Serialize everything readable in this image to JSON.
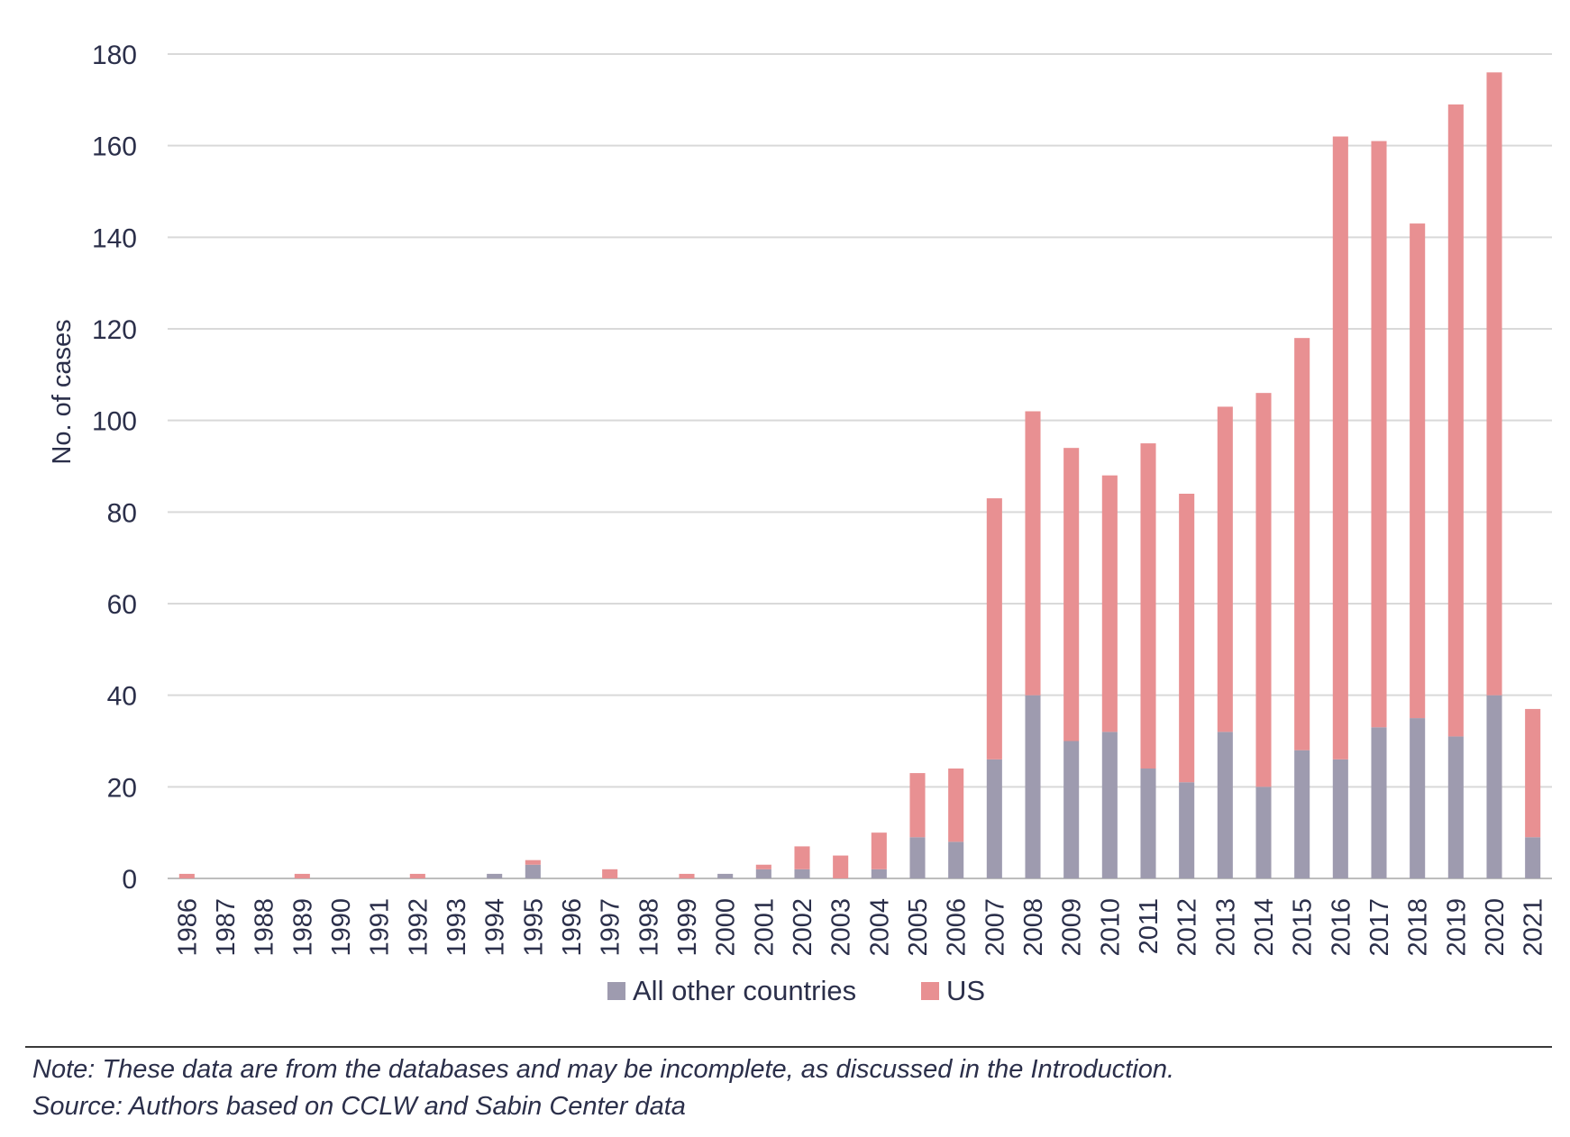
{
  "chart_data": {
    "type": "bar",
    "stacked": true,
    "categories": [
      "1986",
      "1987",
      "1988",
      "1989",
      "1990",
      "1991",
      "1992",
      "1993",
      "1994",
      "1995",
      "1996",
      "1997",
      "1998",
      "1999",
      "2000",
      "2001",
      "2002",
      "2003",
      "2004",
      "2005",
      "2006",
      "2007",
      "2008",
      "2009",
      "2010",
      "2011",
      "2012",
      "2013",
      "2014",
      "2015",
      "2016",
      "2017",
      "2018",
      "2019",
      "2020",
      "2021"
    ],
    "series": [
      {
        "name": "All other countries",
        "color": "#9e9baf",
        "values": [
          0,
          0,
          0,
          0,
          0,
          0,
          0,
          0,
          1,
          3,
          0,
          0,
          0,
          0,
          1,
          2,
          2,
          0,
          2,
          9,
          8,
          26,
          40,
          30,
          32,
          24,
          21,
          32,
          20,
          28,
          26,
          33,
          35,
          31,
          40,
          9
        ]
      },
      {
        "name": "US",
        "color": "#e89092",
        "values": [
          1,
          0,
          0,
          1,
          0,
          0,
          1,
          0,
          0,
          1,
          0,
          2,
          0,
          1,
          0,
          1,
          5,
          5,
          8,
          14,
          16,
          57,
          62,
          64,
          56,
          71,
          63,
          71,
          86,
          90,
          136,
          128,
          108,
          138,
          136,
          28
        ]
      }
    ],
    "title": "",
    "xlabel": "",
    "ylabel": "No. of cases",
    "ylim": [
      0,
      180
    ],
    "yticks": [
      0,
      20,
      40,
      60,
      80,
      100,
      120,
      140,
      160,
      180
    ],
    "grid": "horizontal",
    "legend": "bottom"
  },
  "notes": {
    "note": "Note: These data are from the databases and may be incomplete, as discussed in the Introduction.",
    "source": "Source: Authors based on CCLW and Sabin Center data"
  }
}
